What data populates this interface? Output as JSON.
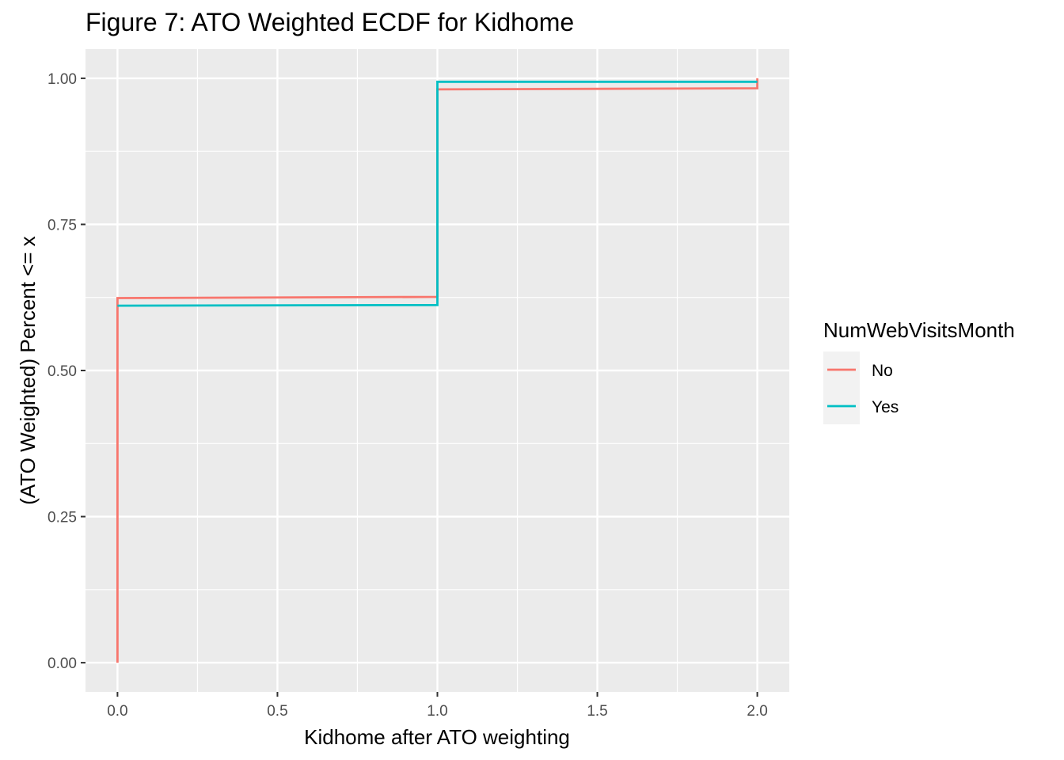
{
  "chart_data": {
    "type": "line",
    "step": true,
    "title": "Figure 7: ATO Weighted ECDF for Kidhome",
    "xlabel": "Kidhome after ATO weighting",
    "ylabel": "(ATO Weighted) Percent <= x",
    "xlim": [
      -0.1,
      2.1
    ],
    "ylim": [
      -0.05,
      1.05
    ],
    "x_ticks": [
      0.0,
      0.5,
      1.0,
      1.5,
      2.0
    ],
    "x_tick_labels": [
      "0.0",
      "0.5",
      "1.0",
      "1.5",
      "2.0"
    ],
    "y_ticks": [
      0.0,
      0.25,
      0.5,
      0.75,
      1.0
    ],
    "y_tick_labels": [
      "0.00",
      "0.25",
      "0.50",
      "0.75",
      "1.00"
    ],
    "grid": true,
    "legend": {
      "title": "NumWebVisitsMonth",
      "position": "right"
    },
    "series": [
      {
        "name": "No",
        "color": "#F8766D",
        "points": [
          [
            0.0,
            0.0
          ],
          [
            0.0,
            0.624
          ],
          [
            1.0,
            0.626
          ],
          [
            1.0,
            0.981
          ],
          [
            2.0,
            0.983
          ],
          [
            2.0,
            1.0
          ]
        ]
      },
      {
        "name": "Yes",
        "color": "#00BFC4",
        "points": [
          [
            0.0,
            0.611
          ],
          [
            1.0,
            0.612
          ],
          [
            1.0,
            0.994
          ],
          [
            2.0,
            0.994
          ]
        ]
      }
    ]
  }
}
